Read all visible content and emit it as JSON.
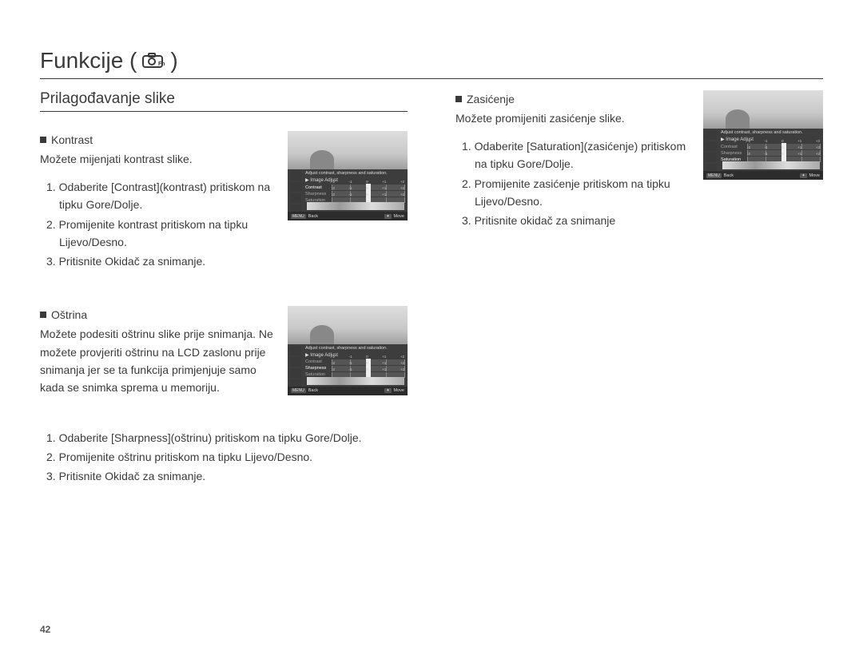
{
  "pageNumber": "42",
  "title": "Funkcije (",
  "titleClose": ")",
  "subtitle": "Prilagođavanje slike",
  "sections": {
    "kontrast": {
      "heading": "Kontrast",
      "desc": "Možete mijenjati kontrast slike.",
      "steps": [
        "1. Odaberite [Contrast](kontrast) pritiskom na tipku Gore/Dolje.",
        "2. Promijenite kontrast pritiskom na tipku Lijevo/Desno.",
        "3. Pritisnite Okidač za snimanje."
      ],
      "lcd": {
        "help": "Adjust contrast, sharpness and saturation.",
        "label": "Image Adjust",
        "rows": [
          "Contrast",
          "Sharpness",
          "Saturation"
        ],
        "hl": 0,
        "ticks": [
          "-2",
          "-1",
          "0",
          "+1",
          "+2"
        ],
        "back": "Back",
        "move": "Move"
      }
    },
    "ostrina": {
      "heading": "Oštrina",
      "desc": "Možete podesiti oštrinu slike prije snimanja. Ne možete provjeriti oštrinu na LCD zaslonu prije snimanja jer se ta funkcija primjenjuje samo kada se snimka sprema u memoriju.",
      "steps": [
        "1. Odaberite [Sharpness](oštrinu) pritiskom na tipku Gore/Dolje.",
        "2. Promijenite oštrinu pritiskom na tipku Lijevo/Desno.",
        "3. Pritisnite Okidač za snimanje."
      ],
      "lcd": {
        "help": "Adjust contrast, sharpness and saturation.",
        "label": "Image Adjust",
        "rows": [
          "Contrast",
          "Sharpness",
          "Saturation"
        ],
        "hl": 1,
        "ticks": [
          "-2",
          "-1",
          "0",
          "+1",
          "+2"
        ],
        "back": "Back",
        "move": "Move"
      }
    },
    "zasicenje": {
      "heading": "Zasićenje",
      "desc": "Možete promijeniti zasićenje slike.",
      "steps": [
        "1. Odaberite [Saturation](zasićenje) pritiskom na tipku Gore/Dolje.",
        "2. Promijenite zasićenje pritiskom na tipku Lijevo/Desno.",
        "3. Pritisnite okidač za snimanje"
      ],
      "lcd": {
        "help": "Adjust contrast, sharpness and saturation.",
        "label": "Image Adjust",
        "rows": [
          "Contrast",
          "Sharpness",
          "Saturation"
        ],
        "hl": 2,
        "ticks": [
          "-2",
          "-1",
          "0",
          "+1",
          "+2"
        ],
        "back": "Back",
        "move": "Move"
      }
    }
  },
  "colors": {
    "text": "#3a3a3a",
    "lcdBg": "#7a7a7a"
  }
}
